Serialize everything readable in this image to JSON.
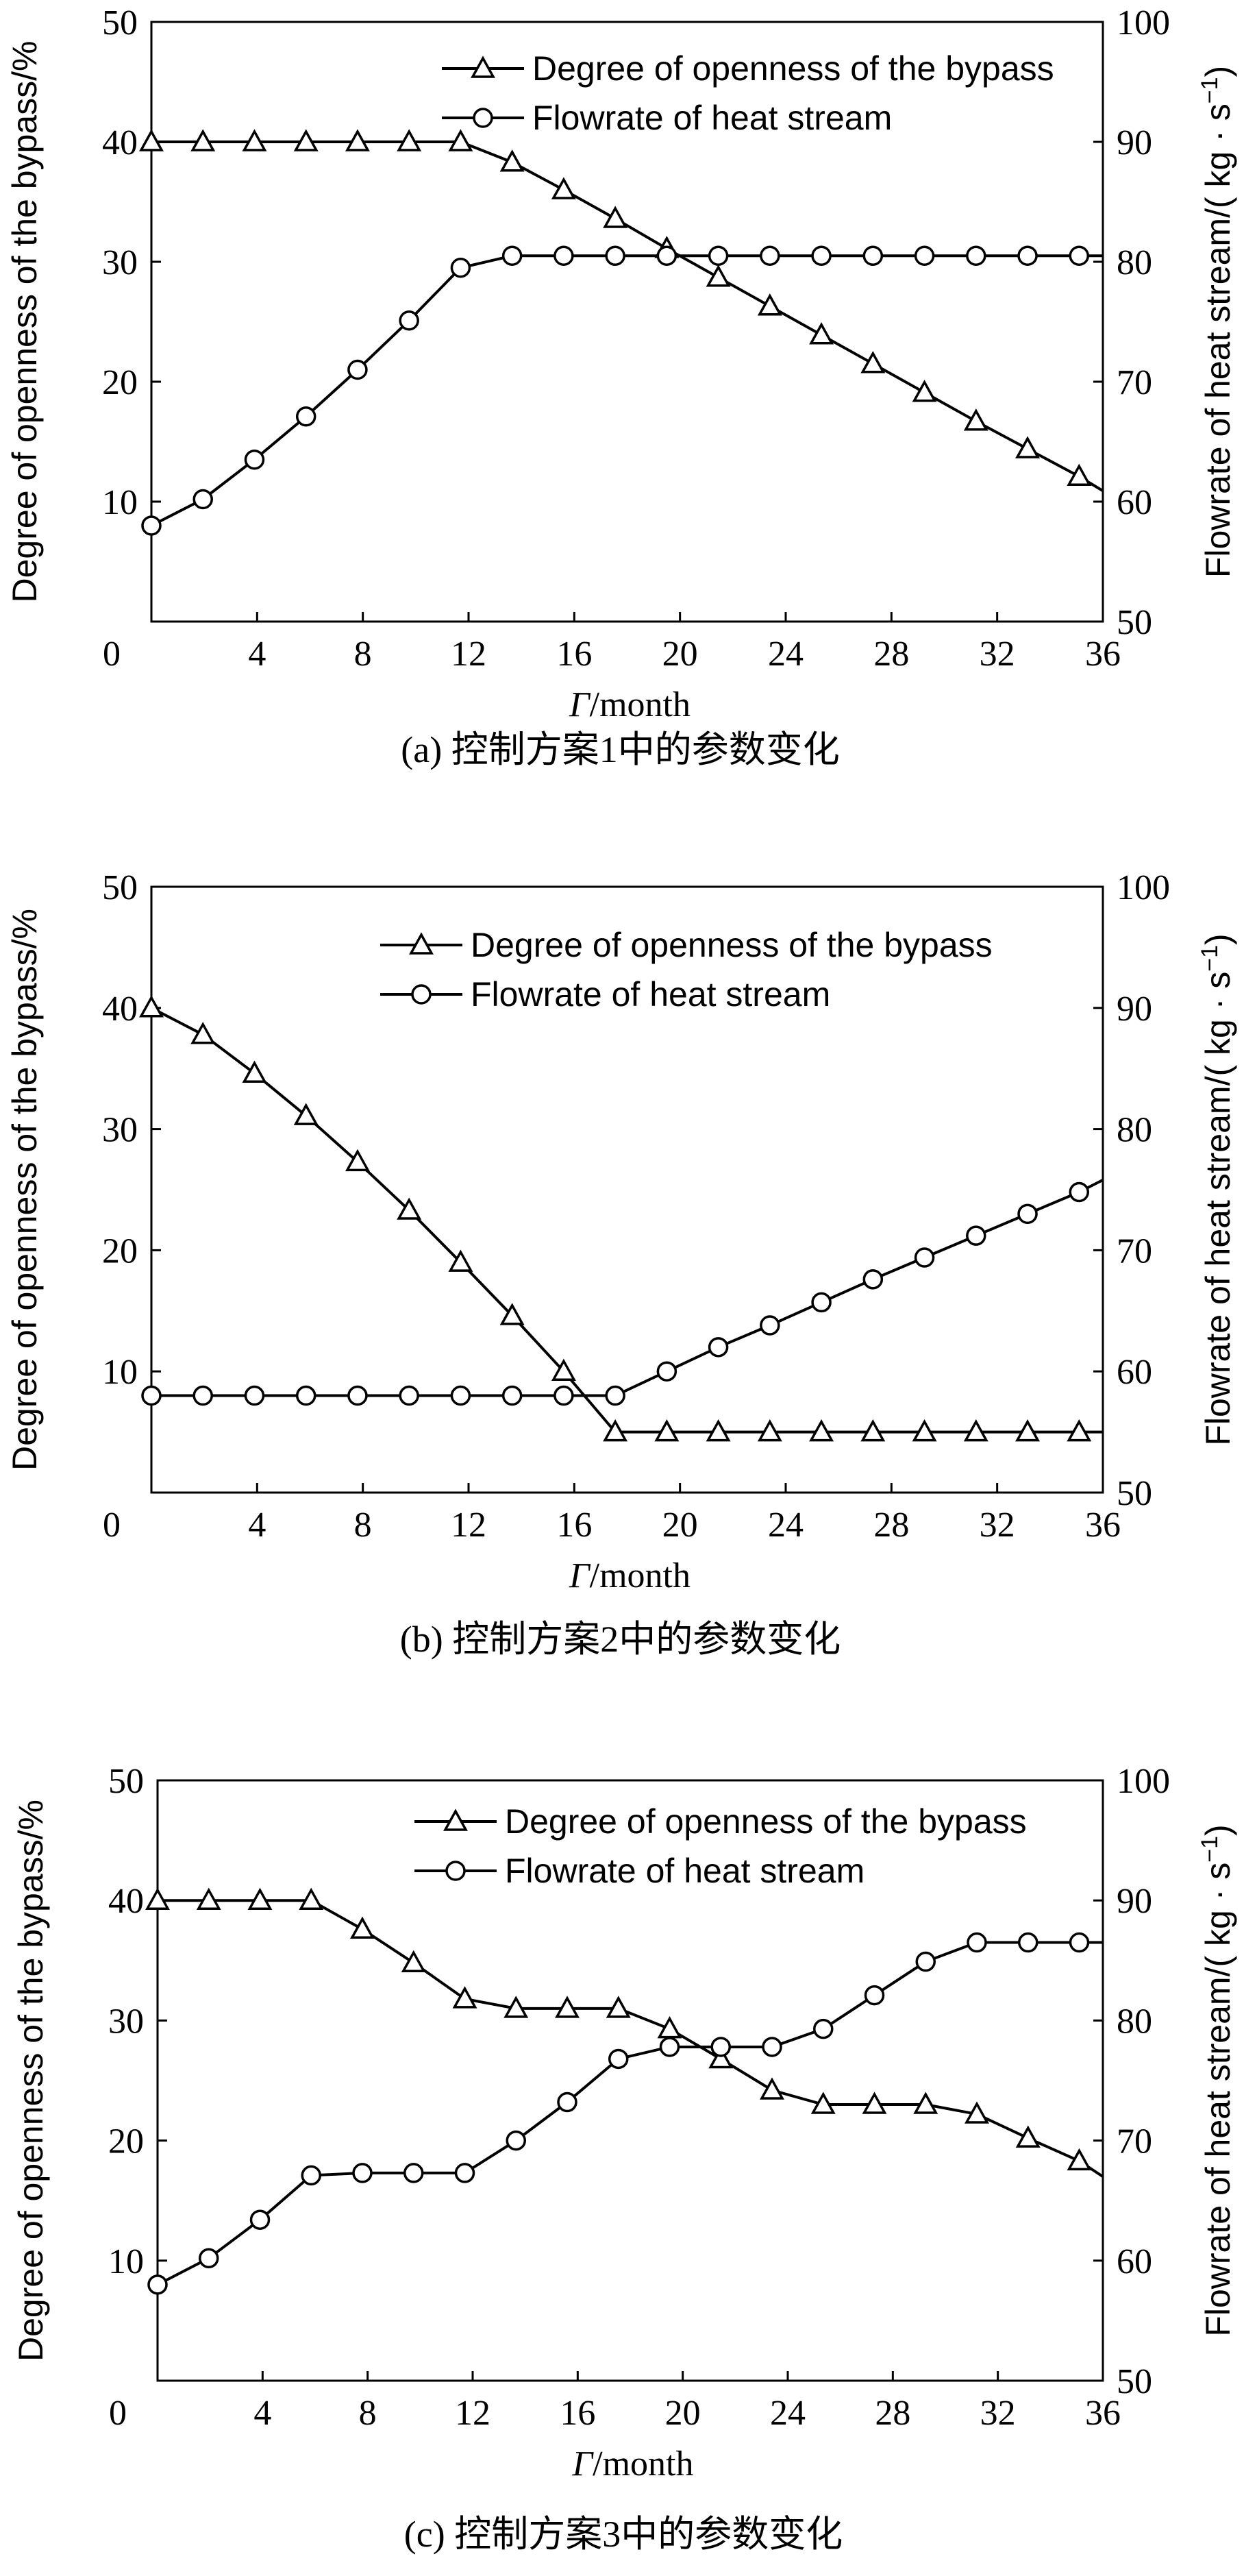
{
  "chart_data": [
    {
      "type": "line",
      "caption": "(a) 控制方案1中的参数变化",
      "xlabel_sym": "Γ",
      "xlabel_unit": "/month",
      "ylabel_left": "Degree of openness of the bypass/%",
      "ylabel_right": "Flowrate of heat stream/( kg · s",
      "ylabel_right_sup": "−1",
      "ylabel_right_close": ")",
      "xlim": [
        0,
        36
      ],
      "ylim_left": [
        0,
        50
      ],
      "ylim_right": [
        50,
        100
      ],
      "xticks": [
        "0",
        "4",
        "8",
        "12",
        "16",
        "20",
        "24",
        "28",
        "32",
        "36"
      ],
      "yticks_left": [
        "10",
        "20",
        "30",
        "40",
        "50"
      ],
      "yticks_right": [
        "50",
        "60",
        "70",
        "80",
        "90",
        "100"
      ],
      "grid": false,
      "legend_position": "top-right",
      "series": [
        {
          "name": "Degree of openness of the bypass",
          "axis": "left",
          "marker": "triangle",
          "x": [
            0,
            1.95,
            3.9,
            5.85,
            7.8,
            9.75,
            11.7,
            13.65,
            15.6,
            17.55,
            19.5,
            21.45,
            23.4,
            25.35,
            27.3,
            29.25,
            31.2,
            33.15,
            35.1
          ],
          "y": [
            40,
            40,
            40,
            40,
            40,
            40,
            40,
            38.3,
            36,
            33.6,
            31.1,
            28.7,
            26.3,
            23.9,
            21.5,
            19.1,
            16.7,
            14.4,
            12.1
          ],
          "line_end": [
            36,
            10.9
          ]
        },
        {
          "name": "Flowrate of heat stream",
          "axis": "right",
          "marker": "circle",
          "x": [
            0,
            1.95,
            3.9,
            5.85,
            7.8,
            9.75,
            11.7,
            13.65,
            15.6,
            17.55,
            19.5,
            21.45,
            23.4,
            25.35,
            27.3,
            29.25,
            31.2,
            33.15,
            35.1
          ],
          "y": [
            58,
            60.2,
            63.5,
            67.1,
            71,
            75.1,
            79.5,
            80.5,
            80.5,
            80.5,
            80.5,
            80.5,
            80.5,
            80.5,
            80.5,
            80.5,
            80.5,
            80.5,
            80.5
          ],
          "line_end": [
            36,
            80.5
          ]
        }
      ]
    },
    {
      "type": "line",
      "caption": "(b) 控制方案2中的参数变化",
      "xlabel_sym": "Γ",
      "xlabel_unit": "/month",
      "ylabel_left": "Degree of openness of the bypass/%",
      "ylabel_right": "Flowrate of heat stream/( kg · s",
      "ylabel_right_sup": "−1",
      "ylabel_right_close": ")",
      "xlim": [
        0,
        36
      ],
      "ylim_left": [
        0,
        50
      ],
      "ylim_right": [
        50,
        100
      ],
      "xticks": [
        "0",
        "4",
        "8",
        "12",
        "16",
        "20",
        "24",
        "28",
        "32",
        "36"
      ],
      "yticks_left": [
        "10",
        "20",
        "30",
        "40",
        "50"
      ],
      "yticks_right": [
        "50",
        "60",
        "70",
        "80",
        "90",
        "100"
      ],
      "grid": false,
      "legend_position": "top-right",
      "series": [
        {
          "name": "Degree of openness of the bypass",
          "axis": "left",
          "marker": "triangle",
          "x": [
            0,
            1.95,
            3.9,
            5.85,
            7.8,
            9.75,
            11.7,
            13.65,
            15.6,
            17.55,
            19.5,
            21.45,
            23.4,
            25.35,
            27.3,
            29.25,
            31.2,
            33.15,
            35.1
          ],
          "y": [
            40,
            37.8,
            34.6,
            31.1,
            27.3,
            23.3,
            19,
            14.6,
            10,
            5,
            5,
            5,
            5,
            5,
            5,
            5,
            5,
            5,
            5
          ],
          "line_end": [
            36,
            5
          ]
        },
        {
          "name": "Flowrate of heat stream",
          "axis": "right",
          "marker": "circle",
          "x": [
            0,
            1.95,
            3.9,
            5.85,
            7.8,
            9.75,
            11.7,
            13.65,
            15.6,
            17.55,
            19.5,
            21.45,
            23.4,
            25.35,
            27.3,
            29.25,
            31.2,
            33.15,
            35.1
          ],
          "y": [
            58,
            58,
            58,
            58,
            58,
            58,
            58,
            58,
            58,
            58,
            60,
            62,
            63.8,
            65.7,
            67.6,
            69.4,
            71.2,
            73,
            74.8
          ],
          "line_end": [
            36,
            75.8
          ]
        }
      ]
    },
    {
      "type": "line",
      "caption": "(c) 控制方案3中的参数变化",
      "xlabel_sym": "Γ",
      "xlabel_unit": "/month",
      "ylabel_left": "Degree of openness of the bypass/%",
      "ylabel_right": "Flowrate of heat stream/( kg · s",
      "ylabel_right_sup": "−1",
      "ylabel_right_close": ")",
      "xlim": [
        0,
        36
      ],
      "ylim_left": [
        0,
        50
      ],
      "ylim_right": [
        50,
        100
      ],
      "xticks": [
        "0",
        "4",
        "8",
        "12",
        "16",
        "20",
        "24",
        "28",
        "32",
        "36"
      ],
      "yticks_left": [
        "10",
        "20",
        "30",
        "40",
        "50"
      ],
      "yticks_right": [
        "50",
        "60",
        "70",
        "80",
        "90",
        "100"
      ],
      "grid": false,
      "legend_position": "top-right",
      "series": [
        {
          "name": "Degree of openness of the bypass",
          "axis": "left",
          "marker": "triangle",
          "x": [
            0,
            1.95,
            3.9,
            5.85,
            7.8,
            9.75,
            11.7,
            13.65,
            15.6,
            17.55,
            19.5,
            21.45,
            23.4,
            25.35,
            27.3,
            29.25,
            31.2,
            33.15,
            35.1
          ],
          "y": [
            40,
            40,
            40,
            40,
            37.6,
            34.8,
            31.8,
            31,
            31,
            31,
            29.3,
            26.8,
            24.2,
            23,
            23,
            23,
            22.2,
            20.2,
            18.3
          ],
          "line_end": [
            36,
            17
          ]
        },
        {
          "name": "Flowrate of heat stream",
          "axis": "right",
          "marker": "circle",
          "x": [
            0,
            1.95,
            3.9,
            5.85,
            7.8,
            9.75,
            11.7,
            13.65,
            15.6,
            17.55,
            19.5,
            21.45,
            23.4,
            25.35,
            27.3,
            29.25,
            31.2,
            33.15,
            35.1
          ],
          "y": [
            58,
            60.2,
            63.4,
            67.1,
            67.3,
            67.3,
            67.3,
            70,
            73.2,
            76.8,
            77.8,
            77.8,
            77.8,
            79.3,
            82.1,
            84.9,
            86.5,
            86.5,
            86.5
          ],
          "line_end": [
            36,
            86.5
          ]
        }
      ]
    }
  ]
}
